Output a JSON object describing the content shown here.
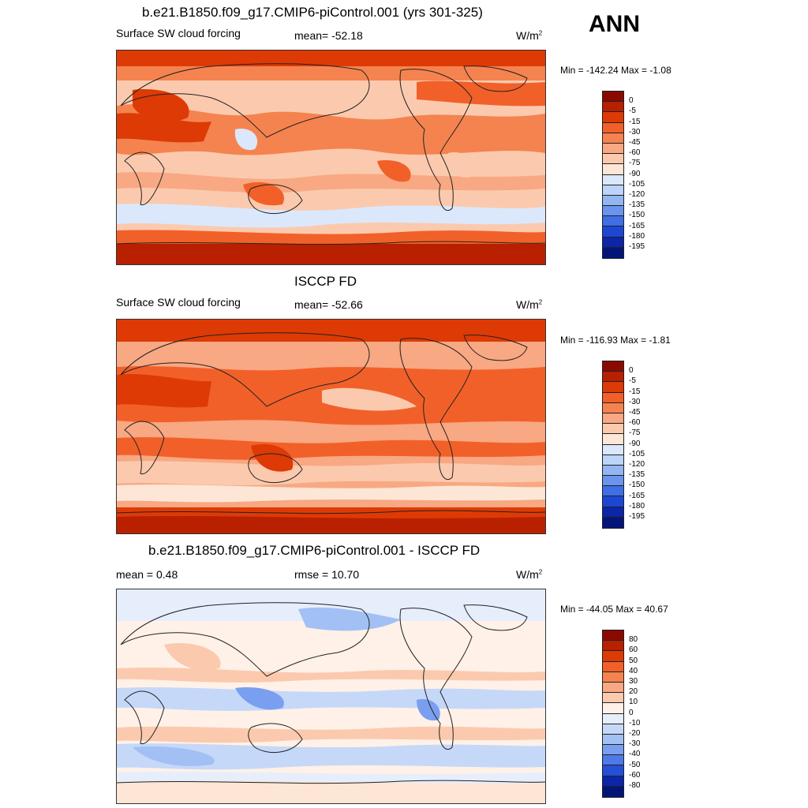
{
  "season": "ANN",
  "panels": [
    {
      "title": "b.e21.B1850.f09_g17.CMIP6-piControl.001 (yrs 301-325)",
      "left_label": "Surface SW cloud forcing",
      "center_label": "mean= -52.18",
      "units_base": "W/m",
      "units_exp": "2",
      "minmax": "Min = -142.24 Max =  -1.08",
      "colorbar": {
        "labels": [
          "0",
          "-5",
          "-15",
          "-30",
          "-45",
          "-60",
          "-75",
          "-90",
          "-105",
          "-120",
          "-135",
          "-150",
          "-165",
          "-180",
          "-195"
        ],
        "colors": [
          "#8b0a00",
          "#b82000",
          "#de3a05",
          "#f2602a",
          "#f5834f",
          "#f8a882",
          "#fbcaae",
          "#fde6d6",
          "#dbe8fb",
          "#bcd4f8",
          "#93b6f3",
          "#6a94ee",
          "#3f6ee6",
          "#1d47d3",
          "#0b26a8",
          "#04157a"
        ]
      }
    },
    {
      "title": "ISCCP FD",
      "left_label": "Surface SW cloud forcing",
      "center_label": "mean= -52.66",
      "units_base": "W/m",
      "units_exp": "2",
      "minmax": "Min = -116.93 Max =  -1.81",
      "colorbar": {
        "labels": [
          "0",
          "-5",
          "-15",
          "-30",
          "-45",
          "-60",
          "-75",
          "-90",
          "-105",
          "-120",
          "-135",
          "-150",
          "-165",
          "-180",
          "-195"
        ],
        "colors": [
          "#8b0a00",
          "#b82000",
          "#de3a05",
          "#f2602a",
          "#f5834f",
          "#f8a882",
          "#fbcaae",
          "#fde6d6",
          "#dbe8fb",
          "#bcd4f8",
          "#93b6f3",
          "#6a94ee",
          "#3f6ee6",
          "#1d47d3",
          "#0b26a8",
          "#04157a"
        ]
      }
    },
    {
      "title": "b.e21.B1850.f09_g17.CMIP6-piControl.001 - ISCCP FD",
      "left_label": "mean =   0.48",
      "center_label": "rmse =  10.70",
      "units_base": "W/m",
      "units_exp": "2",
      "minmax": "Min = -44.05 Max =  40.67",
      "colorbar": {
        "labels": [
          "80",
          "60",
          "50",
          "40",
          "30",
          "20",
          "10",
          "0",
          "-10",
          "-20",
          "-30",
          "-40",
          "-50",
          "-60",
          "-80"
        ],
        "colors": [
          "#8b0a00",
          "#b82000",
          "#de3a05",
          "#f2602a",
          "#f5834f",
          "#f8a882",
          "#fbcaae",
          "#fff1e8",
          "#e6eefc",
          "#c6d8f8",
          "#a3c0f5",
          "#7a9ff0",
          "#4d7ae8",
          "#2450d6",
          "#0b26a8",
          "#04157a"
        ]
      }
    }
  ]
}
